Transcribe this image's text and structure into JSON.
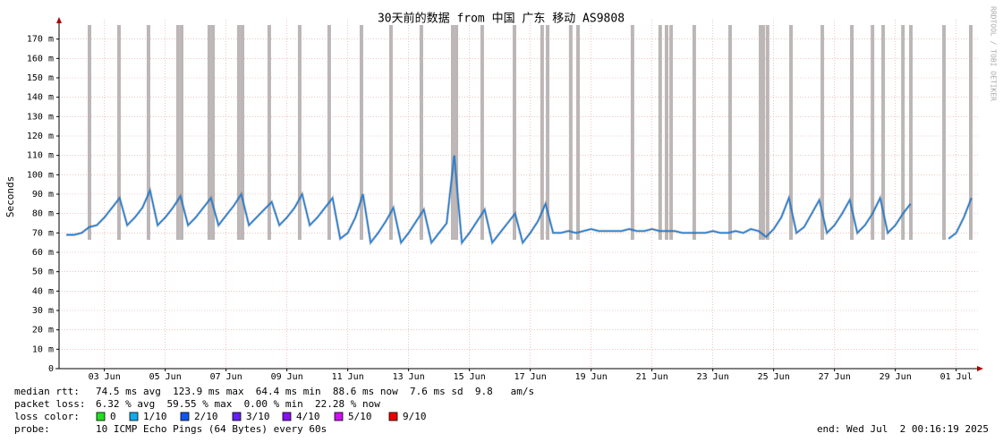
{
  "chart_data": {
    "type": "line",
    "title": "30天前的数据 from 中国 广东 移动 AS9808",
    "y_label": "Seconds",
    "watermark": "RRDTOOL / TOBI OETIKER",
    "xlim": [
      2.01,
      32.01
    ],
    "xticks": [
      {
        "value": 3.5,
        "label": "03 Jun"
      },
      {
        "value": 5.5,
        "label": "05 Jun"
      },
      {
        "value": 7.5,
        "label": "07 Jun"
      },
      {
        "value": 9.5,
        "label": "09 Jun"
      },
      {
        "value": 11.5,
        "label": "11 Jun"
      },
      {
        "value": 13.5,
        "label": "13 Jun"
      },
      {
        "value": 15.5,
        "label": "15 Jun"
      },
      {
        "value": 17.5,
        "label": "17 Jun"
      },
      {
        "value": 19.5,
        "label": "19 Jun"
      },
      {
        "value": 21.5,
        "label": "21 Jun"
      },
      {
        "value": 23.5,
        "label": "23 Jun"
      },
      {
        "value": 25.5,
        "label": "25 Jun"
      },
      {
        "value": 27.5,
        "label": "27 Jun"
      },
      {
        "value": 29.5,
        "label": "29 Jun"
      },
      {
        "value": 31.5,
        "label": "01 Jul"
      }
    ],
    "ylim": [
      0,
      180
    ],
    "yticks": [
      0,
      {
        "value": 10,
        "label": "10 m"
      },
      {
        "value": 20,
        "label": "20 m"
      },
      {
        "value": 30,
        "label": "30 m"
      },
      {
        "value": 40,
        "label": "40 m"
      },
      {
        "value": 50,
        "label": "50 m"
      },
      {
        "value": 60,
        "label": "60 m"
      },
      {
        "value": 70,
        "label": "70 m"
      },
      {
        "value": 80,
        "label": "80 m"
      },
      {
        "value": 90,
        "label": "90 m"
      },
      {
        "value": 100,
        "label": "100 m"
      },
      {
        "value": 110,
        "label": "110 m"
      },
      {
        "value": 120,
        "label": "120 m"
      },
      {
        "value": 130,
        "label": "130 m"
      },
      {
        "value": 140,
        "label": "140 m"
      },
      {
        "value": 150,
        "label": "150 m"
      },
      {
        "value": 160,
        "label": "160 m"
      },
      {
        "value": 170,
        "label": "170 m"
      }
    ],
    "grid": true,
    "x": [
      2.25,
      2.5,
      2.75,
      3.0,
      3.25,
      3.5,
      3.75,
      4.0,
      4.25,
      4.5,
      4.75,
      5.0,
      5.25,
      5.5,
      5.75,
      6.0,
      6.25,
      6.5,
      6.75,
      7.0,
      7.25,
      7.5,
      7.75,
      8.0,
      8.25,
      8.5,
      8.75,
      9.0,
      9.25,
      9.5,
      9.75,
      10.0,
      10.25,
      10.5,
      10.75,
      11.0,
      11.25,
      11.5,
      11.75,
      12.0,
      12.25,
      12.5,
      12.75,
      13.0,
      13.25,
      13.5,
      13.75,
      14.0,
      14.25,
      14.5,
      14.75,
      15.0,
      15.25,
      15.5,
      15.75,
      16.0,
      16.25,
      16.5,
      16.75,
      17.0,
      17.25,
      17.5,
      17.75,
      18.0,
      18.25,
      18.5,
      18.75,
      19.0,
      19.25,
      19.5,
      19.75,
      20.0,
      20.25,
      20.5,
      20.75,
      21.0,
      21.25,
      21.5,
      21.75,
      22.0,
      22.25,
      22.5,
      22.75,
      23.0,
      23.25,
      23.5,
      23.75,
      24.0,
      24.25,
      24.5,
      24.75,
      25.0,
      25.25,
      25.5,
      25.75,
      26.0,
      26.25,
      26.5,
      26.75,
      27.0,
      27.25,
      27.5,
      27.75,
      28.0,
      28.25,
      28.5,
      28.75,
      29.0,
      29.25,
      29.5,
      29.75,
      30.0,
      30.25,
      30.5,
      30.75,
      31.0,
      31.25,
      31.5,
      31.75,
      32.0
    ],
    "series": [
      {
        "color": "#1a7fe0",
        "values": [
          69,
          69,
          70,
          73,
          74,
          78,
          83,
          88,
          74,
          78,
          83,
          92,
          74,
          78,
          83,
          89,
          74,
          78,
          83,
          88,
          74,
          79,
          84,
          90,
          74,
          78,
          82,
          86,
          74,
          78,
          83,
          90,
          74,
          78,
          83,
          88,
          67,
          70,
          78,
          90,
          65,
          70,
          76,
          83,
          65,
          70,
          76,
          82,
          65,
          70,
          75,
          110,
          65,
          70,
          76,
          82,
          65,
          70,
          75,
          80,
          65,
          70,
          76,
          85,
          70,
          70,
          71,
          70,
          71,
          72,
          71,
          71,
          71,
          71,
          72,
          71,
          71,
          72,
          71,
          71,
          71,
          70,
          70,
          70,
          70,
          71,
          70,
          70,
          71,
          70,
          72,
          71,
          68,
          72,
          78,
          88,
          70,
          73,
          80,
          87,
          70,
          74,
          80,
          87,
          70,
          74,
          80,
          88,
          70,
          74,
          80,
          85,
          null,
          null,
          null,
          null,
          67,
          70,
          78,
          88
        ]
      }
    ],
    "loss_spikes": [
      3.01,
      3.98,
      4.95,
      5.92,
      6.04,
      6.95,
      7.07,
      7.92,
      8.04,
      8.92,
      9.92,
      10.89,
      11.95,
      12.92,
      13.92,
      14.95,
      15.07,
      15.92,
      16.98,
      17.89,
      18.07,
      18.83,
      19.07,
      20.86,
      21.77,
      21.98,
      22.13,
      22.89,
      24.07,
      25.07,
      25.16,
      25.3,
      26.07,
      27.1,
      28.07,
      28.75,
      29.1,
      29.75,
      30.01,
      31.1,
      31.98
    ],
    "spike_color": "#bdb6b6",
    "stats": [
      {
        "label": "median rtt:",
        "text": "74.5 ms avg  123.9 ms max  64.4 ms min  88.6 ms now  7.6 ms sd  9.8   am/s"
      },
      {
        "label": "packet loss:",
        "text": "6.32 % avg  59.55 % max  0.00 % min  22.28 % now"
      }
    ],
    "loss_legend": {
      "label": "loss color:",
      "entries": [
        {
          "name": "0",
          "color": "#22dd22"
        },
        {
          "name": "1/10",
          "color": "#11aaee"
        },
        {
          "name": "2/10",
          "color": "#1155ee"
        },
        {
          "name": "3/10",
          "color": "#6622ee"
        },
        {
          "name": "4/10",
          "color": "#8811ee"
        },
        {
          "name": "5/10",
          "color": "#cc11ee"
        },
        {
          "name": "9/10",
          "color": "#ee0000"
        }
      ]
    },
    "probe": {
      "label": "probe:",
      "text": "10 ICMP Echo Pings (64 Bytes) every 60s"
    },
    "end": "end: Wed Jul  2 00:16:19 2025"
  }
}
